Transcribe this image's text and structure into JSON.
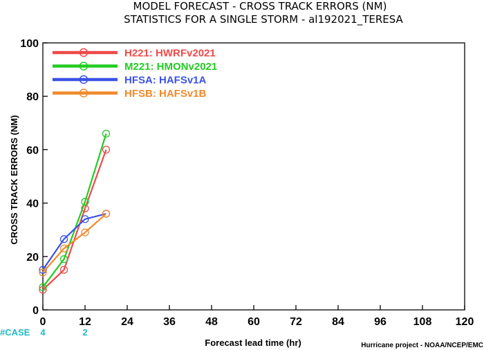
{
  "chart_data": {
    "type": "line",
    "title": "MODEL FORECAST - CROSS TRACK ERRORS (NM)",
    "subtitle": "STATISTICS FOR A SINGLE STORM - al192021_TERESA",
    "xlabel": "Forecast lead time (hr)",
    "ylabel": "CROSS TRACK ERRORS (NM)",
    "xlim": [
      0,
      120
    ],
    "ylim": [
      0,
      100
    ],
    "x_ticks": [
      0,
      12,
      24,
      36,
      48,
      60,
      72,
      84,
      96,
      108,
      120
    ],
    "y_ticks": [
      0,
      20,
      40,
      60,
      80,
      100
    ],
    "grid": false,
    "legend_placement": "top-left",
    "series": [
      {
        "name": "H221: HWRFv2021",
        "color": "#f04848",
        "x": [
          0,
          6,
          12,
          18
        ],
        "y": [
          7.5,
          15,
          38,
          60
        ]
      },
      {
        "name": "M221: HMONv2021",
        "color": "#22cc22",
        "x": [
          0,
          6,
          12,
          18
        ],
        "y": [
          8.5,
          19,
          40.5,
          66
        ]
      },
      {
        "name": "HFSA: HAFSv1A",
        "color": "#3a52e6",
        "x": [
          0,
          6,
          12,
          18
        ],
        "y": [
          15,
          26.5,
          34,
          36
        ]
      },
      {
        "name": "HFSB: HAFSv1B",
        "color": "#f08a2c",
        "x": [
          0,
          6,
          12,
          18
        ],
        "y": [
          14,
          23,
          29,
          36
        ]
      }
    ],
    "case_counts": {
      "label": "#CASE",
      "values": [
        {
          "x": 0,
          "count": "4"
        },
        {
          "x": 12,
          "count": "2"
        }
      ]
    }
  },
  "footer": {
    "credit": "Hurricane project - NOAA/NCEP/EMC"
  }
}
